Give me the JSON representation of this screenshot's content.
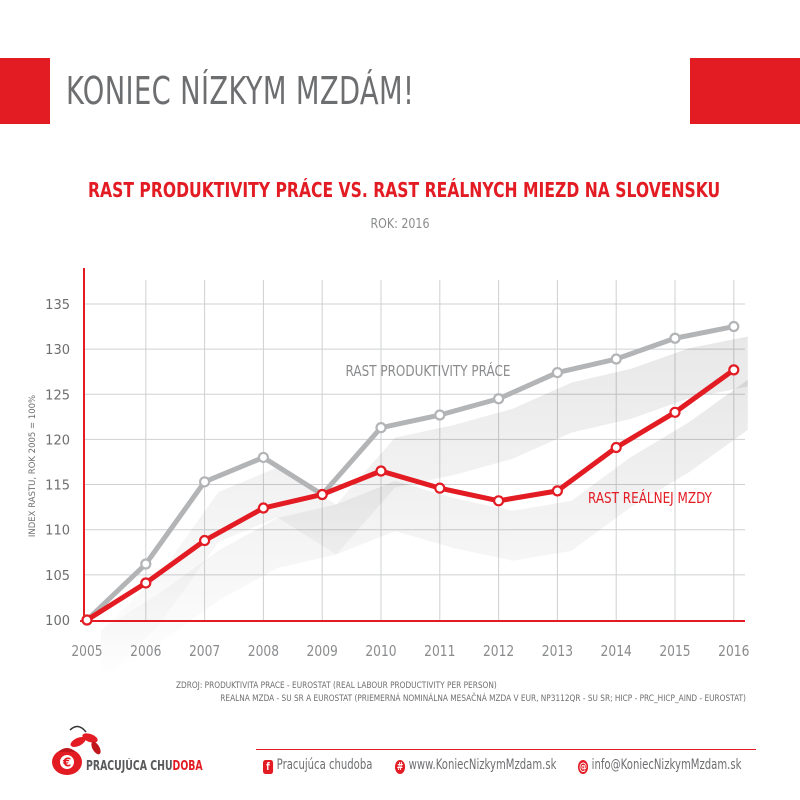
{
  "header": {
    "title": "KONIEC NÍZKYM MZDÁM!"
  },
  "sources": {
    "line1": "ZDROJ:  PRODUKTIVITA PRACE - EUROSTAT (REAL LABOUR PRODUCTIVITY PER PERSON)",
    "line2": "REALNA MZDA - SU SR A EUROSTAT (PRIEMERNÁ NOMINÁLNA MESAČNÁ MZDA V EUR, NP3112QR - SU SR; HICP - PRC_HICP_AIND - EUROSTAT)"
  },
  "footer": {
    "logo_text_a": "PRACUJÚCA CHU",
    "logo_text_b": "DOBA",
    "logo_symbol": "€",
    "facebook_label": "Pracujúca chudoba",
    "website_label": "www.KoniecNizkymMzdam.sk",
    "email_label": "info@KoniecNizkymMzdam.sk"
  },
  "colors": {
    "accent": "#e31b23",
    "grey_series": "#b3b4b6",
    "text_grey": "#6d6e70"
  },
  "icons": {
    "facebook": "facebook-icon",
    "web": "globe-icon",
    "email": "at-sign-icon",
    "logo": "money-bag-icon"
  },
  "chart_data": {
    "type": "line",
    "title": "RAST PRODUKTIVITY PRÁCE VS. RAST REÁLNYCH MIEZD NA SLOVENSKU",
    "subtitle": "ROK: 2016",
    "ylabel": "INDEX RASTU, ROK 2005 = 100%",
    "xlabel": "",
    "ylim": [
      100,
      135
    ],
    "yticks": [
      100,
      105,
      110,
      115,
      120,
      125,
      130,
      135
    ],
    "grid": true,
    "x": [
      "2005",
      "2006",
      "2007",
      "2008",
      "2009",
      "2010",
      "2011",
      "2012",
      "2013",
      "2014",
      "2015",
      "2016"
    ],
    "series": [
      {
        "name": "RAST PRODUKTIVITY PRÁCE",
        "color": "#b3b4b6",
        "values": [
          100,
          106.2,
          115.3,
          118,
          113.9,
          121.3,
          122.7,
          124.5,
          127.4,
          128.9,
          131.2,
          132.5
        ]
      },
      {
        "name": "RAST REÁLNEJ MZDY",
        "color": "#e31b23",
        "values": [
          100,
          104.1,
          108.8,
          112.4,
          113.9,
          116.5,
          114.6,
          113.2,
          114.3,
          119.1,
          123,
          127.7
        ]
      }
    ]
  }
}
